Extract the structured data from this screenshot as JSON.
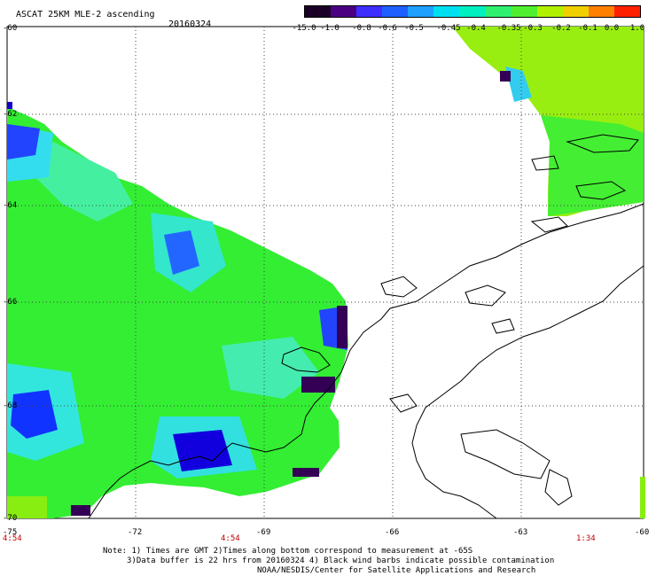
{
  "header": {
    "title": "ASCAT 25KM MLE-2 ascending",
    "date": "20160324"
  },
  "colorbar": {
    "labels": [
      "-15.0",
      "-1.0",
      "-0.8",
      "-0.6",
      "-0.5",
      "-0.45",
      "-0.4",
      "-0.35",
      "-0.3",
      "-0.2",
      "-0.1",
      "0.0",
      "1.0"
    ],
    "colors": [
      "#1a0026",
      "#4b0082",
      "#3f2fff",
      "#1f5fff",
      "#1fa0ff",
      "#00e0f0",
      "#00f0c0",
      "#30f070",
      "#50f030",
      "#b0f000",
      "#f0d000",
      "#ff8000",
      "#ff2000"
    ]
  },
  "axes": {
    "lat_labels": [
      "-60",
      "-62",
      "-64",
      "-66",
      "-68",
      "-70"
    ],
    "lon_labels": [
      "-75",
      "-72",
      "-69",
      "-66",
      "-63",
      "-60"
    ],
    "time_labels": [
      "4:54",
      "4:54",
      "1:34"
    ]
  },
  "notes": {
    "line1": "Note: 1) Times are GMT 2)Times along bottom correspond to measurement at -65S",
    "line2": "3)Data buffer is 22 hrs from 20160324 4) Black wind barbs indicate possible contamination",
    "line3": "NOAA/NESDIS/Center for Satellite Applications and Research"
  },
  "palette": {
    "green": "#33ee33",
    "light_green": "#66ee22",
    "cyan": "#33eecc",
    "blue": "#2244ff",
    "dark_blue": "#1100cc",
    "purple": "#330055",
    "yellow_green": "#99ee11",
    "gridline": "#444444",
    "coast": "#000000"
  }
}
